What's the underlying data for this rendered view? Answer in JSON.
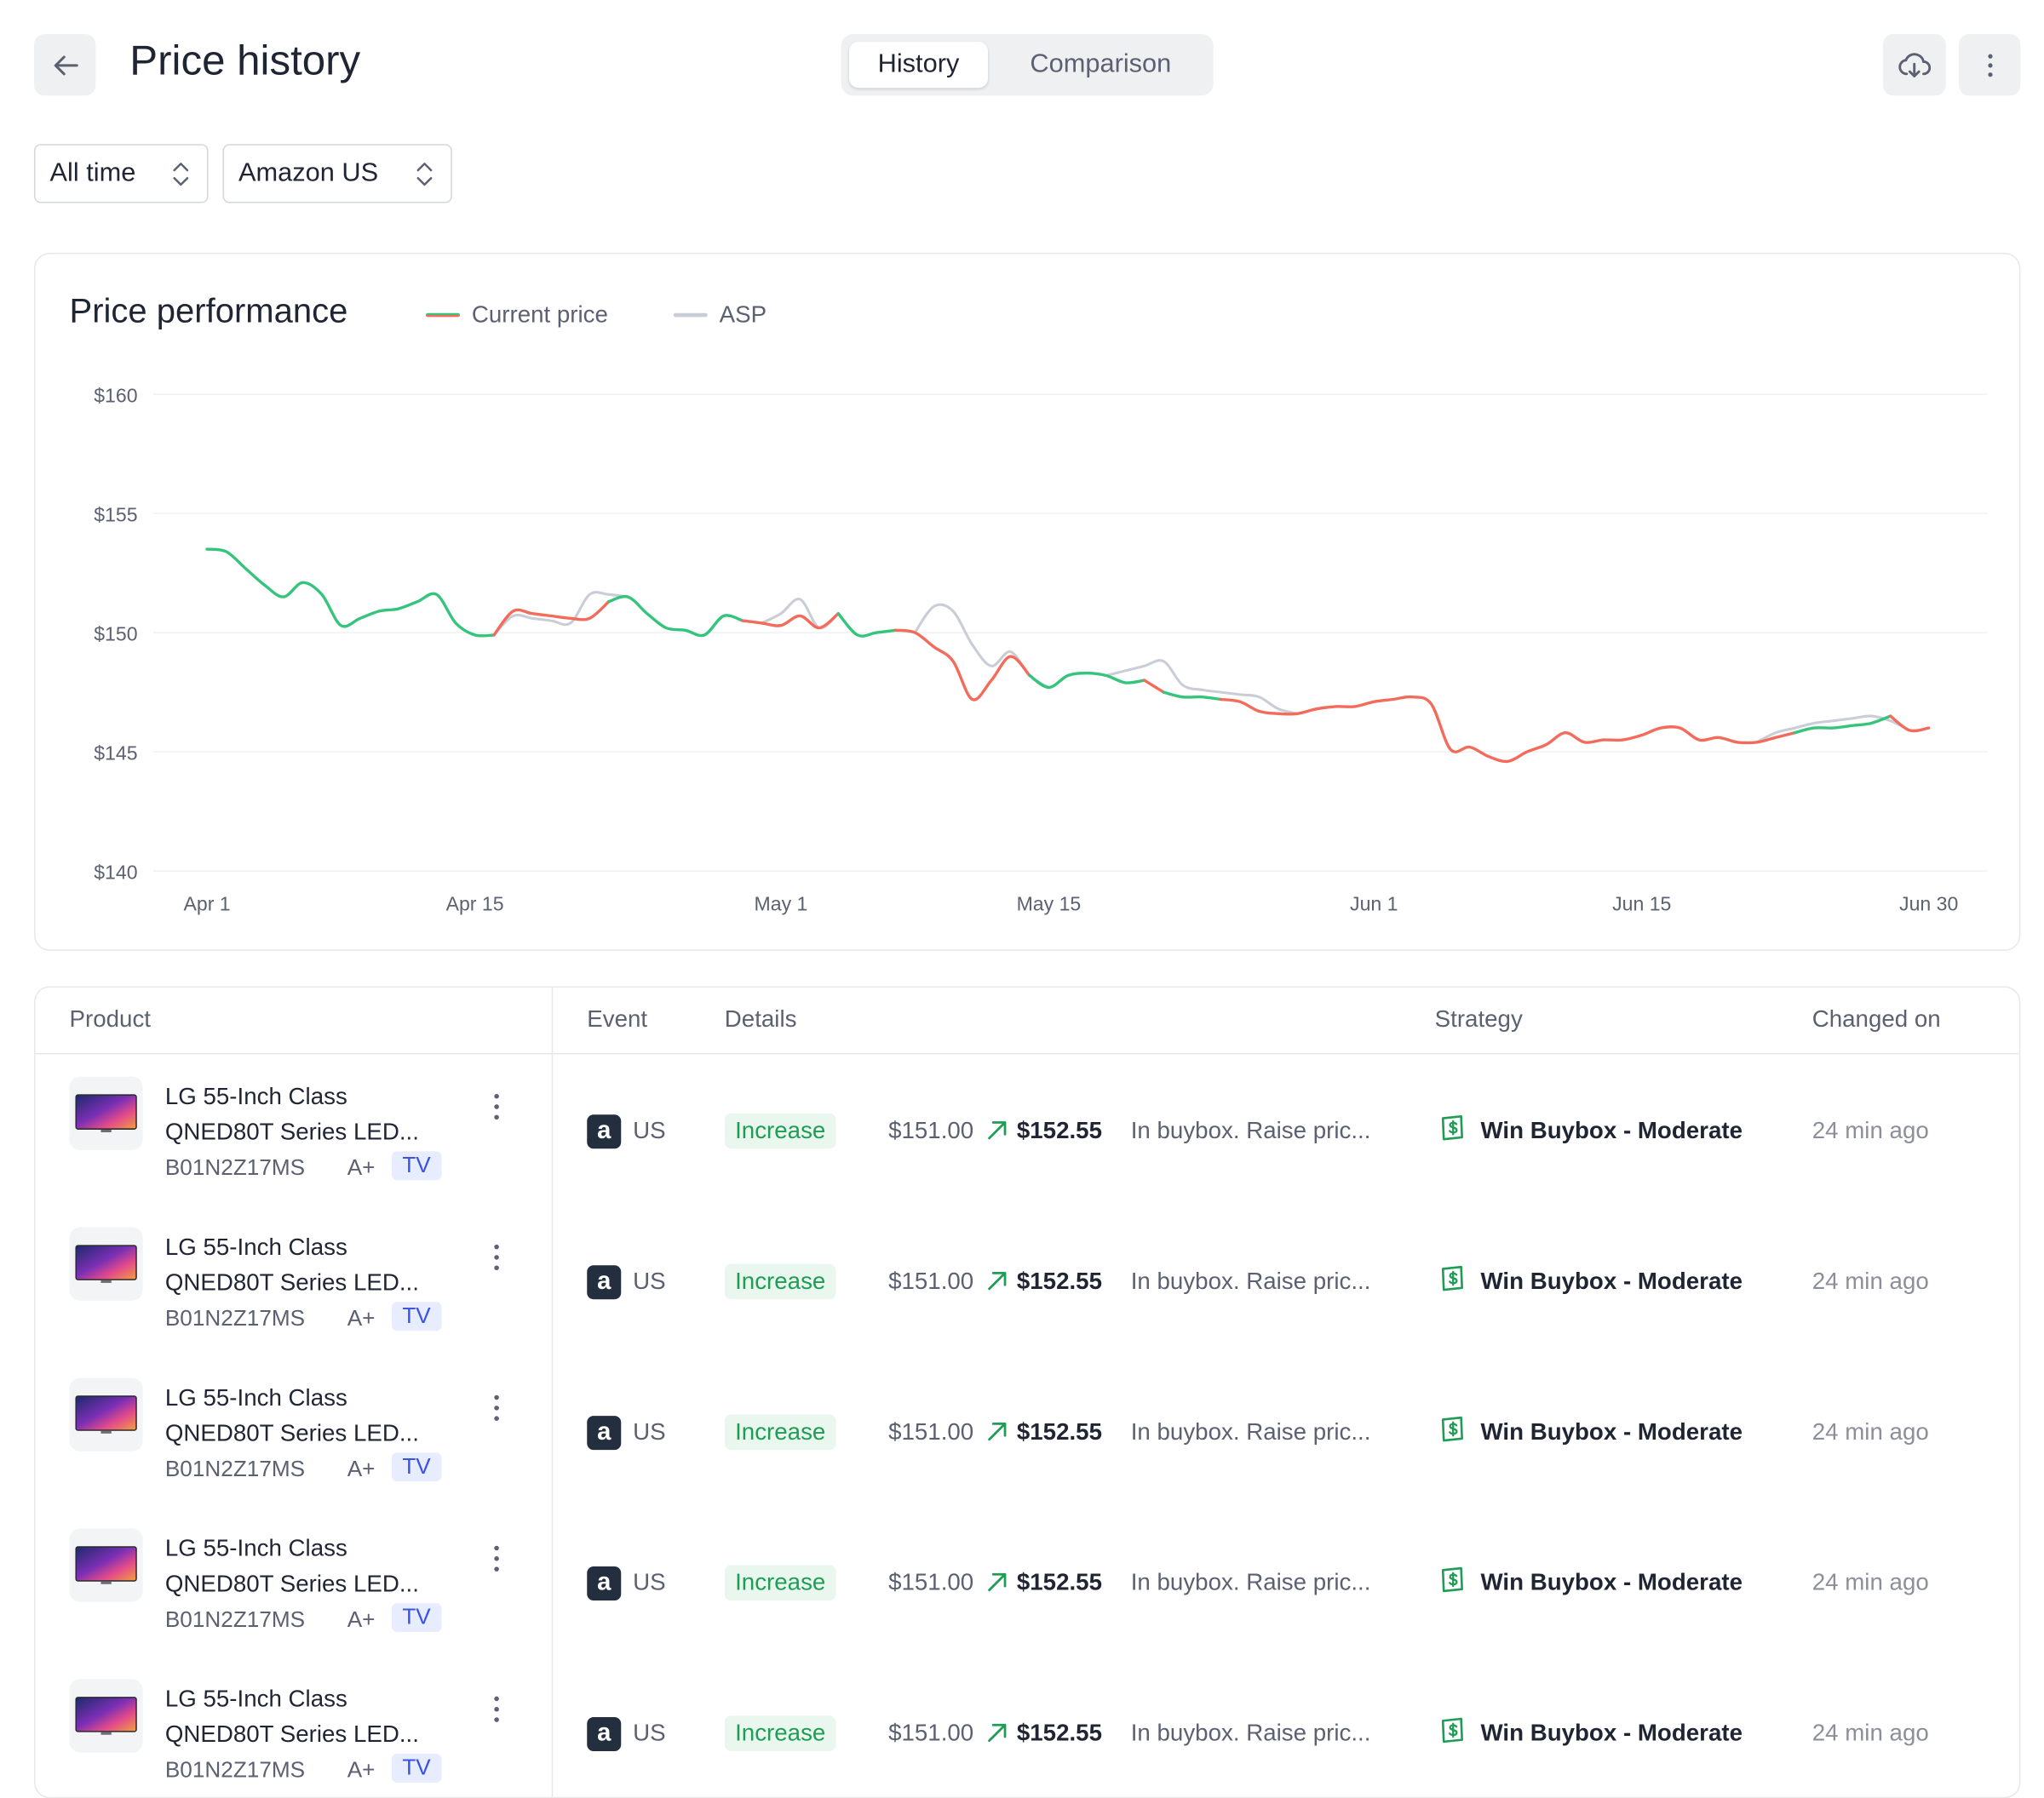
{
  "header": {
    "title": "Price history",
    "tabs": [
      {
        "label": "History",
        "active": true
      },
      {
        "label": "Comparison",
        "active": false
      }
    ]
  },
  "filters": {
    "range": "All time",
    "marketplace": "Amazon US"
  },
  "chart": {
    "title": "Price performance",
    "legend": [
      {
        "label": "Current price",
        "colors": [
          "#34c47c",
          "#f26b5b"
        ]
      },
      {
        "label": "ASP",
        "colors": [
          "#c9cdd6"
        ]
      }
    ]
  },
  "chart_data": {
    "type": "line",
    "title": "Price performance",
    "y_ticks": [
      "$160",
      "$155",
      "$150",
      "$145",
      "$140"
    ],
    "x_ticks": [
      "Apr 1",
      "Apr 15",
      "May 1",
      "May 15",
      "Jun 1",
      "Jun 15",
      "Jun 30"
    ],
    "ylim": [
      140,
      160
    ],
    "grid": true,
    "legend_position": "top-left",
    "colors": {
      "above": "#34c47c",
      "below": "#f26b5b",
      "asp": "#c9cdd6"
    },
    "series": [
      {
        "name": "Current price",
        "x": [
          "Apr 1",
          "Apr 2",
          "Apr 3",
          "Apr 4",
          "Apr 5",
          "Apr 6",
          "Apr 7",
          "Apr 8",
          "Apr 9",
          "Apr 10",
          "Apr 11",
          "Apr 12",
          "Apr 13",
          "Apr 14",
          "Apr 15",
          "Apr 16",
          "Apr 17",
          "Apr 18",
          "Apr 19",
          "Apr 20",
          "Apr 21",
          "Apr 22",
          "Apr 23",
          "Apr 24",
          "Apr 25",
          "Apr 26",
          "Apr 27",
          "Apr 28",
          "Apr 29",
          "Apr 30",
          "May 1",
          "May 2",
          "May 3",
          "May 4",
          "May 5",
          "May 6",
          "May 7",
          "May 8",
          "May 9",
          "May 10",
          "May 11",
          "May 12",
          "May 13",
          "May 14",
          "May 15",
          "May 16",
          "May 17",
          "May 18",
          "May 19",
          "May 20",
          "May 21",
          "May 22",
          "May 23",
          "May 24",
          "May 25",
          "May 26",
          "May 27",
          "May 28",
          "May 29",
          "May 30",
          "May 31",
          "Jun 1",
          "Jun 2",
          "Jun 3",
          "Jun 4",
          "Jun 5",
          "Jun 6",
          "Jun 7",
          "Jun 8",
          "Jun 9",
          "Jun 10",
          "Jun 11",
          "Jun 12",
          "Jun 13",
          "Jun 14",
          "Jun 15",
          "Jun 16",
          "Jun 17",
          "Jun 18",
          "Jun 19",
          "Jun 20",
          "Jun 21",
          "Jun 22",
          "Jun 23",
          "Jun 24",
          "Jun 25",
          "Jun 26",
          "Jun 27",
          "Jun 28",
          "Jun 29",
          "Jun 30"
        ],
        "values": [
          153.5,
          153.4,
          152.7,
          152.0,
          151.5,
          152.1,
          151.6,
          150.3,
          150.6,
          150.9,
          151.0,
          151.3,
          151.6,
          150.4,
          149.9,
          149.9,
          150.9,
          150.8,
          150.7,
          150.6,
          150.6,
          151.3,
          151.5,
          150.8,
          150.2,
          150.1,
          149.9,
          150.7,
          150.5,
          150.4,
          150.3,
          150.7,
          150.2,
          150.8,
          149.9,
          150.0,
          150.1,
          150.0,
          149.4,
          148.8,
          147.2,
          148.0,
          149.0,
          148.2,
          147.7,
          148.2,
          148.3,
          148.2,
          147.9,
          148.0,
          147.5,
          147.3,
          147.3,
          147.2,
          147.1,
          146.7,
          146.6,
          146.6,
          146.8,
          146.9,
          146.9,
          147.1,
          147.2,
          147.3,
          147.0,
          145.1,
          145.2,
          144.8,
          144.6,
          145.0,
          145.3,
          145.8,
          145.4,
          145.5,
          145.5,
          145.7,
          146.0,
          146.0,
          145.5,
          145.6,
          145.4,
          145.4,
          145.6,
          145.8,
          146.0,
          146.0,
          146.1,
          146.2,
          146.5,
          145.9,
          146.0
        ]
      },
      {
        "name": "ASP",
        "x": [
          "Apr 17",
          "Apr 18",
          "Apr 19",
          "Apr 20",
          "Apr 21",
          "Apr 22",
          "May 1",
          "May 2",
          "May 3",
          "May 9",
          "May 10",
          "May 11",
          "May 12",
          "May 13",
          "May 14",
          "May 19",
          "May 20",
          "May 21",
          "May 22",
          "May 23",
          "May 24",
          "May 25",
          "May 26",
          "May 27",
          "Jun 22",
          "Jun 23",
          "Jun 24",
          "Jun 25",
          "Jun 26",
          "Jun 27",
          "Jun 28"
        ],
        "values": [
          150.7,
          150.6,
          150.5,
          150.4,
          151.6,
          151.6,
          150.8,
          151.4,
          150.2,
          151.1,
          150.9,
          149.5,
          148.6,
          149.2,
          148.2,
          148.4,
          148.6,
          148.8,
          147.8,
          147.6,
          147.5,
          147.4,
          147.3,
          146.8,
          145.8,
          146.0,
          146.2,
          146.3,
          146.4,
          146.5,
          146.3
        ]
      }
    ]
  },
  "table": {
    "columns": {
      "product": "Product",
      "event": "Event",
      "details": "Details",
      "strategy": "Strategy",
      "changed_on": "Changed on"
    },
    "rows": [
      {
        "name_line1": "LG 55-Inch Class",
        "name_line2": "QNED80T Series LED...",
        "asin": "B01N2Z17MS",
        "grade": "A+",
        "tag": "TV",
        "marketplace_icon": "amazon-icon",
        "marketplace": "US",
        "event": "Increase",
        "old_price": "$151.00",
        "new_price": "$152.55",
        "details": "In buybox. Raise pric...",
        "strategy": "Win Buybox - Moderate",
        "changed_on": "24 min ago"
      },
      {
        "name_line1": "LG 55-Inch Class",
        "name_line2": "QNED80T Series LED...",
        "asin": "B01N2Z17MS",
        "grade": "A+",
        "tag": "TV",
        "marketplace_icon": "amazon-icon",
        "marketplace": "US",
        "event": "Increase",
        "old_price": "$151.00",
        "new_price": "$152.55",
        "details": "In buybox. Raise pric...",
        "strategy": "Win Buybox - Moderate",
        "changed_on": "24 min ago"
      },
      {
        "name_line1": "LG 55-Inch Class",
        "name_line2": "QNED80T Series LED...",
        "asin": "B01N2Z17MS",
        "grade": "A+",
        "tag": "TV",
        "marketplace_icon": "amazon-icon",
        "marketplace": "US",
        "event": "Increase",
        "old_price": "$151.00",
        "new_price": "$152.55",
        "details": "In buybox. Raise pric...",
        "strategy": "Win Buybox - Moderate",
        "changed_on": "24 min ago"
      },
      {
        "name_line1": "LG 55-Inch Class",
        "name_line2": "QNED80T Series LED...",
        "asin": "B01N2Z17MS",
        "grade": "A+",
        "tag": "TV",
        "marketplace_icon": "amazon-icon",
        "marketplace": "US",
        "event": "Increase",
        "old_price": "$151.00",
        "new_price": "$152.55",
        "details": "In buybox. Raise pric...",
        "strategy": "Win Buybox - Moderate",
        "changed_on": "24 min ago"
      },
      {
        "name_line1": "LG 55-Inch Class",
        "name_line2": "QNED80T Series LED...",
        "asin": "B01N2Z17MS",
        "grade": "A+",
        "tag": "TV",
        "marketplace_icon": "amazon-icon",
        "marketplace": "US",
        "event": "Increase",
        "old_price": "$151.00",
        "new_price": "$152.55",
        "details": "In buybox. Raise pric...",
        "strategy": "Win Buybox - Moderate",
        "changed_on": "24 min ago"
      }
    ]
  }
}
